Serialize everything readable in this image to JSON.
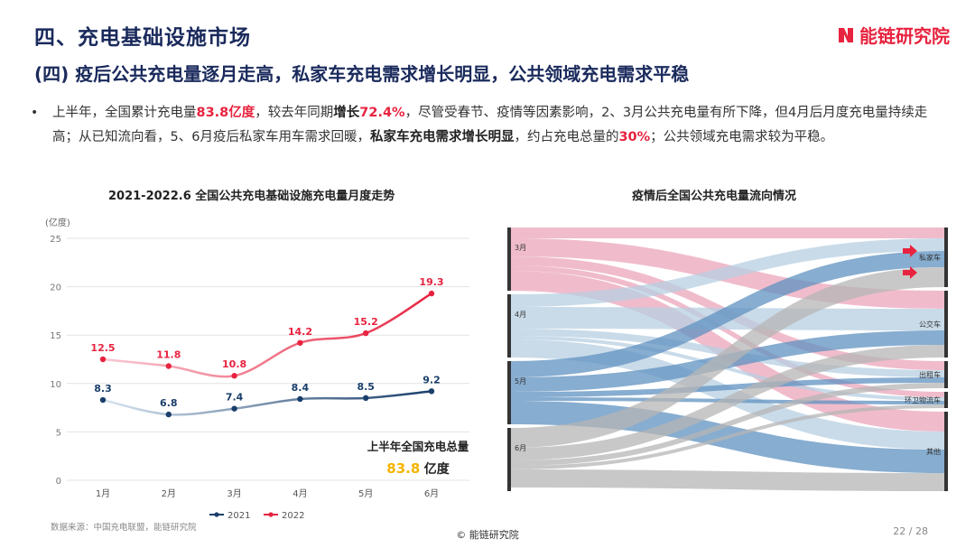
{
  "header": {
    "title": "四、充电基础设施市场",
    "subtitle": "(四) 疫后公共充电量逐月走高，私家车充电需求增长明显，公共领域充电需求平稳"
  },
  "logo": {
    "text": "能链研究院"
  },
  "bullet": {
    "t1": "上半年，全国累计充电量",
    "v1": "83.8亿度",
    "t2": "，较去年同期",
    "b1": "增长",
    "v2": "72.4%",
    "t3": "，尽管受春节、疫情等因素影响，2、3月公共充电量有所下降，但4月后月度充电量持续走高；从已知流向看，5、6月疫后私家车用车需求回暖，",
    "b2": "私家车充电需求增长明显",
    "t4": "，约占充电总量的",
    "v3": "30%",
    "t5": "；公共领域充电需求较为平稳。"
  },
  "left_chart_title": "2021-2022.6 全国公共充电基础设施充电量月度走势",
  "right_chart_title": "疫情后全国公共充电量流向情况",
  "total": {
    "label": "上半年全国充电总量",
    "value": "83.8",
    "unit": "亿度"
  },
  "footer": {
    "source": "数据来源：中国充电联盟，能链研究院",
    "copyright": "© 能链研究院",
    "page": "22 / 28"
  },
  "colors": {
    "red": "#e8233f",
    "navy": "#1a2a5c",
    "gold": "#f5b400",
    "pink": "#e9a1b6",
    "blue": "#6f9ec6",
    "gray": "#b5b5b5"
  },
  "chart_data": [
    {
      "type": "line",
      "title": "2021-2022.6 全国公共充电基础设施充电量月度走势",
      "ylabel": "(亿度)",
      "categories": [
        "1月",
        "2月",
        "3月",
        "4月",
        "5月",
        "6月"
      ],
      "ylim": [
        0,
        25
      ],
      "yticks": [
        0,
        5,
        10,
        15,
        20,
        25
      ],
      "grid": true,
      "legend": "bottom",
      "series": [
        {
          "name": "2021",
          "values": [
            8.3,
            6.8,
            7.4,
            8.4,
            8.5,
            9.2
          ],
          "color": "#1a3f6b"
        },
        {
          "name": "2022",
          "values": [
            12.5,
            11.8,
            10.8,
            14.2,
            15.2,
            19.3
          ],
          "color": "#e8233f"
        }
      ]
    },
    {
      "type": "sankey",
      "title": "疫情后全国公共充电量流向情况",
      "sources": [
        "3月",
        "4月",
        "5月",
        "6月"
      ],
      "targets": [
        "私家车",
        "公交车",
        "出租车",
        "环卫物流车",
        "其他"
      ]
    }
  ]
}
